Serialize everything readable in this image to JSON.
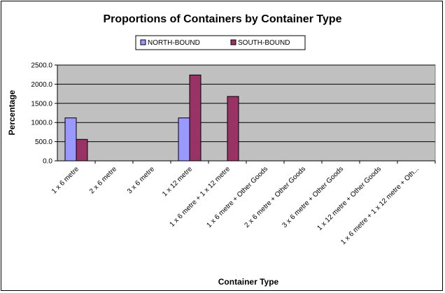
{
  "chart_data": {
    "type": "bar",
    "title": "Proportions of Containers by Container Type",
    "xlabel": "Container Type",
    "ylabel": "Percentage",
    "ylim": [
      0,
      2500
    ],
    "yticks": [
      "0.0",
      "500.0",
      "1000.0",
      "1500.0",
      "2000.0",
      "2500.0"
    ],
    "grid": true,
    "legend_position": "top",
    "categories": [
      "1 x 6 metre",
      "2 x 6 metre",
      "3 x 6 metre",
      "1 x 12 metre",
      "1 x 6 metre + 1 x 12 metre",
      "1 x 6 metre + Other Goods",
      "2 x 6 metre + Other Goods",
      "3 x 6 metre + Other Goods",
      "1 x 12 metre + Other Goods",
      "1 x 6 metre + 1 x 12 metre + Oth..."
    ],
    "series": [
      {
        "name": "NORTH-BOUND",
        "color": "#9999ff",
        "values": [
          1120,
          0,
          0,
          1120,
          0,
          0,
          0,
          0,
          0,
          0
        ]
      },
      {
        "name": "SOUTH-BOUND",
        "color": "#993366",
        "values": [
          560,
          0,
          0,
          2240,
          1680,
          0,
          0,
          0,
          0,
          0
        ]
      }
    ],
    "colors": {
      "plot_background": "#c0c0c0",
      "gridline": "#000000"
    }
  }
}
